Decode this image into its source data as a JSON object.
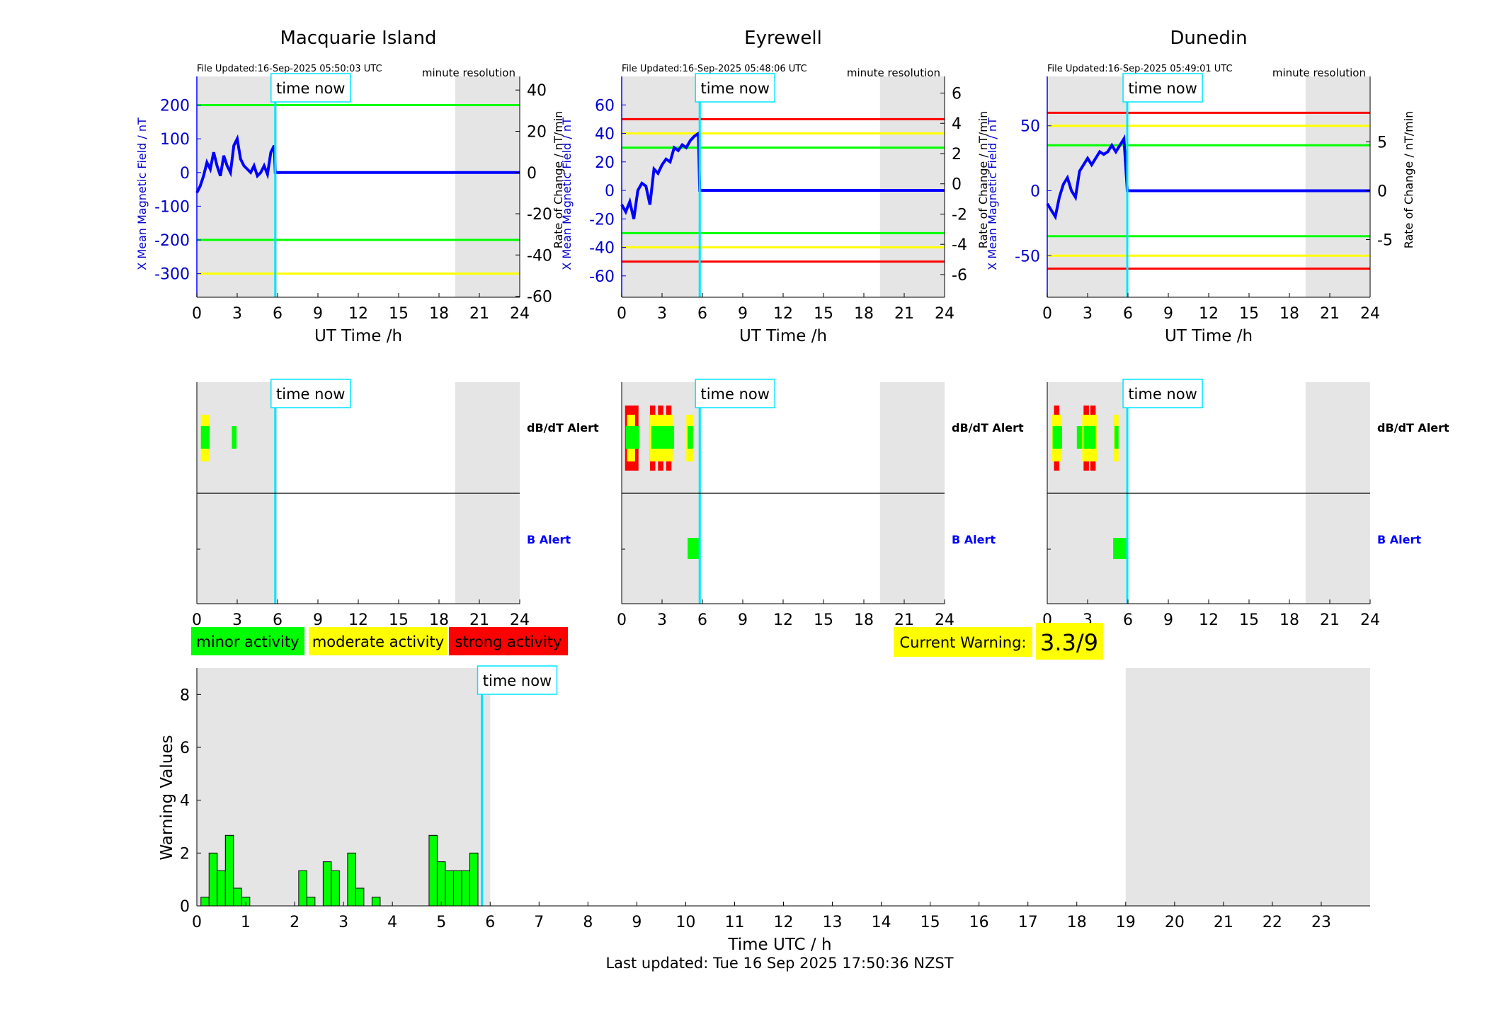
{
  "colors": {
    "minor": "#00ff00",
    "moderate": "#ffff00",
    "strong": "#ff0000",
    "field_line": "#0000ff",
    "time_now": "#00e5ff",
    "night_shade": "#e5e5e5",
    "axis_blue": "#0000cc"
  },
  "time_now_label": "time now",
  "stations": [
    {
      "title": "Macquarie Island",
      "file_updated": "File Updated:16-Sep-2025 05:50:03 UTC",
      "resolution": "minute resolution",
      "x_label": "UT Time /h",
      "y_left_label": "X Mean Magnetic Field / nT",
      "y_right_label": "Rate of Change / nT/min",
      "x_ticks": [
        0,
        3,
        6,
        9,
        12,
        15,
        18,
        21,
        24
      ],
      "y_left_ticks": [
        200,
        100,
        0,
        -100,
        -200,
        -300
      ],
      "y_left_range": [
        -370,
        285
      ],
      "y_right_ticks": [
        40,
        20,
        0,
        -20,
        -40,
        -60
      ],
      "y_right_range": [
        -60.5,
        46.6
      ],
      "night": [
        [
          0,
          6
        ],
        [
          19.2,
          24
        ]
      ],
      "thresholds": [
        {
          "level": "green",
          "values": [
            200,
            -200
          ]
        },
        {
          "level": "yellow",
          "values": [
            -300
          ]
        }
      ],
      "time_now_h": 5.83,
      "field_series": [
        [
          0,
          -60
        ],
        [
          0.25,
          -40
        ],
        [
          0.5,
          -10
        ],
        [
          0.75,
          30
        ],
        [
          1,
          10
        ],
        [
          1.25,
          60
        ],
        [
          1.5,
          20
        ],
        [
          1.75,
          -10
        ],
        [
          2,
          50
        ],
        [
          2.25,
          20
        ],
        [
          2.5,
          0
        ],
        [
          2.75,
          80
        ],
        [
          3,
          100
        ],
        [
          3.25,
          40
        ],
        [
          3.5,
          20
        ],
        [
          3.75,
          10
        ],
        [
          4,
          0
        ],
        [
          4.25,
          20
        ],
        [
          4.5,
          -10
        ],
        [
          4.75,
          0
        ],
        [
          5,
          20
        ],
        [
          5.25,
          -5
        ],
        [
          5.5,
          60
        ],
        [
          5.75,
          80
        ],
        [
          5.83,
          0
        ],
        [
          24,
          0
        ]
      ],
      "alerts_dbdt": [
        {
          "start": 0.3,
          "end": 0.95,
          "level": "minor"
        },
        {
          "start": 0.3,
          "end": 0.95,
          "level": "moderate"
        },
        {
          "start": 2.6,
          "end": 2.95,
          "level": "minor"
        }
      ],
      "alerts_b": []
    },
    {
      "title": "Eyrewell",
      "file_updated": "File Updated:16-Sep-2025 05:48:06 UTC",
      "resolution": "minute resolution",
      "x_label": "UT Time /h",
      "y_left_label": "X Mean Magnetic Field / nT",
      "y_right_label": "Rate of Change / nT/min",
      "x_ticks": [
        0,
        3,
        6,
        9,
        12,
        15,
        18,
        21,
        24
      ],
      "y_left_ticks": [
        60,
        40,
        20,
        0,
        -20,
        -40,
        -60
      ],
      "y_left_range": [
        -75,
        80
      ],
      "y_right_ticks": [
        6,
        4,
        2,
        0,
        -2,
        -4,
        -6
      ],
      "y_right_range": [
        -7.5,
        7.1
      ],
      "night": [
        [
          0,
          6
        ],
        [
          19.2,
          24
        ]
      ],
      "thresholds": [
        {
          "level": "strong",
          "values": [
            50,
            -50
          ]
        },
        {
          "level": "moderate",
          "values": [
            40,
            -40
          ]
        },
        {
          "level": "minor",
          "values": [
            30,
            -30
          ]
        }
      ],
      "time_now_h": 5.8,
      "field_series": [
        [
          0,
          -10
        ],
        [
          0.3,
          -15
        ],
        [
          0.6,
          -8
        ],
        [
          0.9,
          -20
        ],
        [
          1.2,
          0
        ],
        [
          1.5,
          5
        ],
        [
          1.8,
          3
        ],
        [
          2.1,
          -10
        ],
        [
          2.4,
          15
        ],
        [
          2.7,
          12
        ],
        [
          3,
          18
        ],
        [
          3.3,
          22
        ],
        [
          3.6,
          20
        ],
        [
          3.9,
          30
        ],
        [
          4.2,
          28
        ],
        [
          4.5,
          32
        ],
        [
          4.8,
          30
        ],
        [
          5.1,
          35
        ],
        [
          5.4,
          38
        ],
        [
          5.7,
          40
        ],
        [
          5.8,
          0
        ],
        [
          24,
          0
        ]
      ],
      "alerts_dbdt": [
        {
          "start": 0.25,
          "end": 1.25,
          "level": "strong"
        },
        {
          "start": 0.4,
          "end": 1.0,
          "level": "moderate"
        },
        {
          "start": 0.3,
          "end": 1.3,
          "level": "minor"
        },
        {
          "start": 2.1,
          "end": 2.5,
          "level": "strong"
        },
        {
          "start": 2.7,
          "end": 3.1,
          "level": "strong"
        },
        {
          "start": 3.3,
          "end": 3.7,
          "level": "strong"
        },
        {
          "start": 2.1,
          "end": 3.8,
          "level": "moderate"
        },
        {
          "start": 2.2,
          "end": 3.9,
          "level": "minor"
        },
        {
          "start": 4.8,
          "end": 5.3,
          "level": "moderate"
        },
        {
          "start": 4.9,
          "end": 5.3,
          "level": "minor"
        }
      ],
      "alerts_b": [
        {
          "start": 4.9,
          "end": 5.8,
          "level": "minor"
        }
      ]
    },
    {
      "title": "Dunedin",
      "file_updated": "File Updated:16-Sep-2025 05:49:01 UTC",
      "resolution": "minute resolution",
      "x_label": "UT Time /h",
      "y_left_label": "X Mean Magnetic Field / nT",
      "y_right_label": "Rate of Change / nT/min",
      "x_ticks": [
        0,
        3,
        6,
        9,
        12,
        15,
        18,
        21,
        24
      ],
      "y_left_ticks": [
        50,
        0,
        -50
      ],
      "y_left_range": [
        -82,
        88
      ],
      "y_right_ticks": [
        5,
        0,
        -5
      ],
      "y_right_range": [
        -10.9,
        11.7
      ],
      "night": [
        [
          0,
          6
        ],
        [
          19.2,
          24
        ]
      ],
      "thresholds": [
        {
          "level": "strong",
          "values": [
            60,
            -60
          ]
        },
        {
          "level": "moderate",
          "values": [
            50,
            -50
          ]
        },
        {
          "level": "minor",
          "values": [
            35,
            -35
          ]
        }
      ],
      "time_now_h": 5.95,
      "field_series": [
        [
          0,
          -10
        ],
        [
          0.3,
          -15
        ],
        [
          0.6,
          -20
        ],
        [
          0.9,
          -5
        ],
        [
          1.2,
          5
        ],
        [
          1.5,
          10
        ],
        [
          1.8,
          0
        ],
        [
          2.1,
          -5
        ],
        [
          2.4,
          15
        ],
        [
          2.7,
          20
        ],
        [
          3,
          25
        ],
        [
          3.3,
          20
        ],
        [
          3.6,
          25
        ],
        [
          3.9,
          30
        ],
        [
          4.2,
          28
        ],
        [
          4.5,
          30
        ],
        [
          4.8,
          35
        ],
        [
          5.1,
          30
        ],
        [
          5.4,
          35
        ],
        [
          5.7,
          40
        ],
        [
          5.95,
          0
        ],
        [
          24,
          0
        ]
      ],
      "alerts_dbdt": [
        {
          "start": 0.5,
          "end": 0.9,
          "level": "strong"
        },
        {
          "start": 0.35,
          "end": 1.05,
          "level": "moderate"
        },
        {
          "start": 0.4,
          "end": 1.1,
          "level": "minor"
        },
        {
          "start": 2.7,
          "end": 3.1,
          "level": "strong"
        },
        {
          "start": 3.2,
          "end": 3.6,
          "level": "strong"
        },
        {
          "start": 2.6,
          "end": 3.7,
          "level": "moderate"
        },
        {
          "start": 2.2,
          "end": 2.6,
          "level": "minor"
        },
        {
          "start": 2.7,
          "end": 3.6,
          "level": "minor"
        },
        {
          "start": 4.9,
          "end": 5.3,
          "level": "moderate"
        },
        {
          "start": 5.0,
          "end": 5.3,
          "level": "minor"
        }
      ],
      "alerts_b": [
        {
          "start": 4.9,
          "end": 6.0,
          "level": "minor"
        }
      ]
    }
  ],
  "alert_labels": {
    "dbdt": "dB/dT Alert",
    "b": "B Alert"
  },
  "alert_x_ticks": [
    0,
    3,
    6,
    9,
    12,
    15,
    18,
    21,
    24
  ],
  "legend": {
    "minor": "minor activity",
    "moderate": "moderate activity",
    "strong": "strong activity"
  },
  "current_warning": {
    "label": "Current Warning:",
    "value": "3.3/9"
  },
  "chart_data": {
    "type": "bar",
    "x_label": "Time UTC / h",
    "y_label": "Warning Values",
    "x_ticks": [
      0,
      1,
      2,
      3,
      4,
      5,
      6,
      7,
      8,
      9,
      10,
      11,
      12,
      13,
      14,
      15,
      16,
      17,
      18,
      19,
      20,
      21,
      22,
      23
    ],
    "y_ticks": [
      0,
      2,
      4,
      6,
      8
    ],
    "xlim": [
      0,
      24
    ],
    "ylim": [
      0,
      9
    ],
    "bar_width_h": 0.1667,
    "night": [
      [
        0,
        6
      ],
      [
        19,
        24
      ]
    ],
    "time_now_h": 5.83,
    "bars": [
      {
        "x": 0.167,
        "value": 0.33
      },
      {
        "x": 0.333,
        "value": 2.0
      },
      {
        "x": 0.5,
        "value": 1.33
      },
      {
        "x": 0.667,
        "value": 2.67
      },
      {
        "x": 0.833,
        "value": 0.67
      },
      {
        "x": 1.0,
        "value": 0.33
      },
      {
        "x": 2.167,
        "value": 1.33
      },
      {
        "x": 2.333,
        "value": 0.33
      },
      {
        "x": 2.667,
        "value": 1.67
      },
      {
        "x": 2.833,
        "value": 1.33
      },
      {
        "x": 3.167,
        "value": 2.0
      },
      {
        "x": 3.333,
        "value": 0.67
      },
      {
        "x": 3.667,
        "value": 0.33
      },
      {
        "x": 4.833,
        "value": 2.67
      },
      {
        "x": 5.0,
        "value": 1.67
      },
      {
        "x": 5.167,
        "value": 1.33
      },
      {
        "x": 5.333,
        "value": 1.33
      },
      {
        "x": 5.5,
        "value": 1.33
      },
      {
        "x": 5.667,
        "value": 2.0
      }
    ]
  },
  "footer": "Last updated: Tue 16 Sep 2025 17:50:36 NZST"
}
